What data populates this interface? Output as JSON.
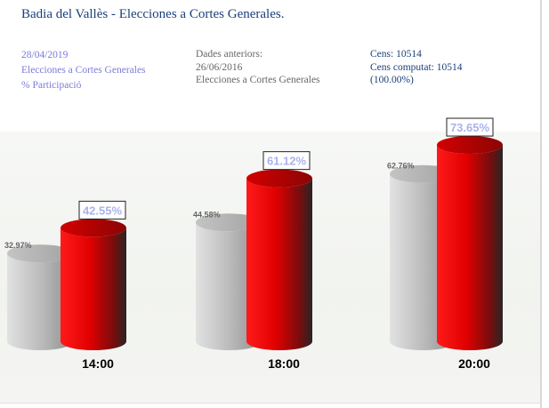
{
  "header": {
    "title": "Badia del Vallès - Elecciones a Cortes Generales."
  },
  "info_left": {
    "date": "28/04/2019",
    "election": "Elecciones a Cortes Generales",
    "metric": "% Participació"
  },
  "info_mid": {
    "heading": "Dades anteriors:",
    "date": "26/06/2016",
    "election": "Elecciones a Cortes Generales"
  },
  "info_right": {
    "census": "Cens: 10514",
    "census_counted": "Cens computat: 10514",
    "percent": "(100.00%)"
  },
  "colors": {
    "current": "#e00000",
    "previous": "#a8a8a8",
    "current_label": "#aab2ee"
  },
  "chart_data": {
    "type": "bar",
    "categories": [
      "14:00",
      "18:00",
      "20:00"
    ],
    "series": [
      {
        "values": [
          32.97,
          44.58,
          62.76
        ],
        "labels": [
          "32.97%",
          "44.58%",
          "62.76%"
        ]
      },
      {
        "values": [
          42.55,
          61.12,
          73.65
        ],
        "labels": [
          "42.55%",
          "61.12%",
          "73.65%"
        ]
      }
    ],
    "ylim": [
      0,
      100
    ]
  }
}
